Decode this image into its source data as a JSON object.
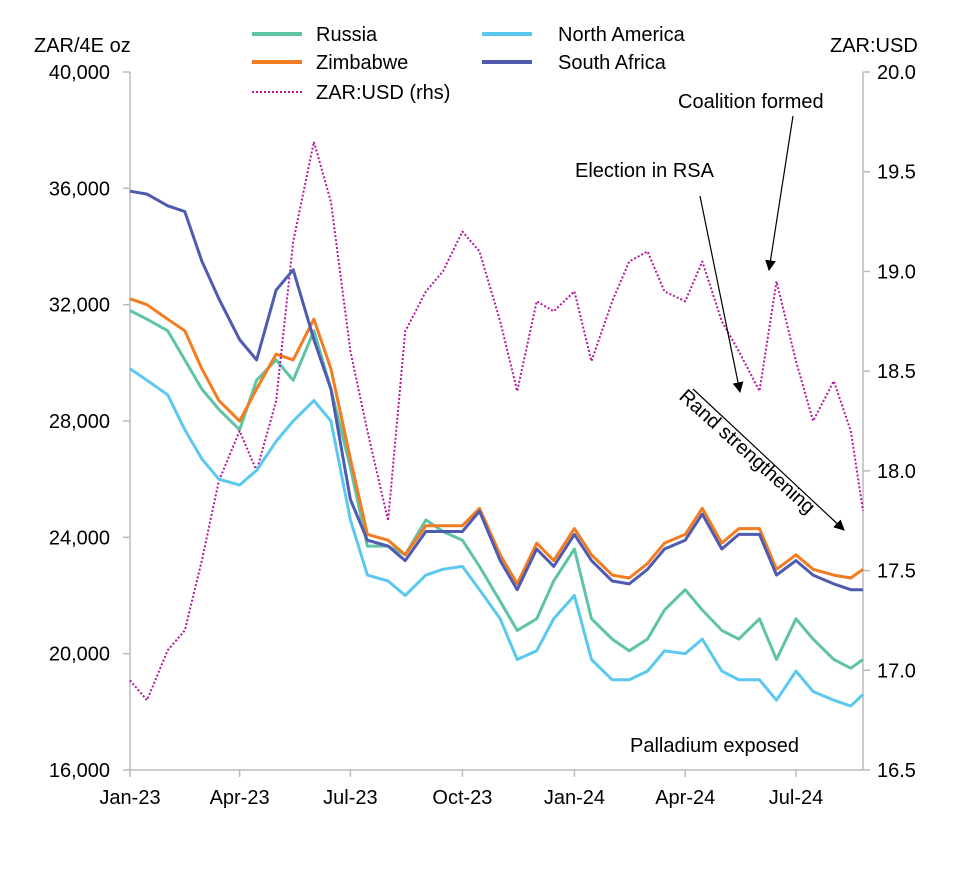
{
  "chart_data": {
    "type": "line",
    "ylabel_left": "ZAR/4E oz",
    "ylabel_right": "ZAR:USD",
    "ylim_left": [
      16000,
      40000
    ],
    "ylim_right": [
      16.5,
      20.0
    ],
    "xlim": [
      "2023-01-01",
      "2024-08-25"
    ],
    "grid": false,
    "legend_position": "top-center",
    "x_ticks": [
      {
        "date": "2023-01-01",
        "label": "Jan-23"
      },
      {
        "date": "2023-04-01",
        "label": "Apr-23"
      },
      {
        "date": "2023-07-01",
        "label": "Jul-23"
      },
      {
        "date": "2023-10-01",
        "label": "Oct-23"
      },
      {
        "date": "2024-01-01",
        "label": "Jan-24"
      },
      {
        "date": "2024-04-01",
        "label": "Apr-24"
      },
      {
        "date": "2024-07-01",
        "label": "Jul-24"
      }
    ],
    "y_ticks_left": [
      {
        "value": 16000,
        "label": "16,000"
      },
      {
        "value": 20000,
        "label": "20,000"
      },
      {
        "value": 24000,
        "label": "24,000"
      },
      {
        "value": 28000,
        "label": "28,000"
      },
      {
        "value": 32000,
        "label": "32,000"
      },
      {
        "value": 36000,
        "label": "36,000"
      },
      {
        "value": 40000,
        "label": "40,000"
      }
    ],
    "y_ticks_right": [
      {
        "value": 16.5,
        "label": "16.5"
      },
      {
        "value": 17.0,
        "label": "17.0"
      },
      {
        "value": 17.5,
        "label": "17.5"
      },
      {
        "value": 18.0,
        "label": "18.0"
      },
      {
        "value": 18.5,
        "label": "18.5"
      },
      {
        "value": 19.0,
        "label": "19.0"
      },
      {
        "value": 19.5,
        "label": "19.5"
      },
      {
        "value": 20.0,
        "label": "20.0"
      }
    ],
    "x": [
      "2023-01-01",
      "2023-01-15",
      "2023-02-01",
      "2023-02-15",
      "2023-03-01",
      "2023-03-15",
      "2023-04-01",
      "2023-04-15",
      "2023-05-01",
      "2023-05-15",
      "2023-06-01",
      "2023-06-15",
      "2023-07-01",
      "2023-07-15",
      "2023-08-01",
      "2023-08-15",
      "2023-09-01",
      "2023-09-15",
      "2023-10-01",
      "2023-10-15",
      "2023-11-01",
      "2023-11-15",
      "2023-12-01",
      "2023-12-15",
      "2024-01-01",
      "2024-01-15",
      "2024-02-01",
      "2024-02-15",
      "2024-03-01",
      "2024-03-15",
      "2024-04-01",
      "2024-04-15",
      "2024-05-01",
      "2024-05-15",
      "2024-06-01",
      "2024-06-15",
      "2024-07-01",
      "2024-07-15",
      "2024-08-01",
      "2024-08-15",
      "2024-08-25"
    ],
    "series": [
      {
        "name": "Russia",
        "axis": "left",
        "color": "#5fc3a6",
        "style": "solid",
        "values": [
          31800,
          31500,
          31100,
          30100,
          29100,
          28400,
          27700,
          29400,
          30100,
          29400,
          31100,
          29100,
          26400,
          23700,
          23700,
          23400,
          24600,
          24200,
          23900,
          23000,
          21800,
          20800,
          21200,
          22500,
          23600,
          21200,
          20500,
          20100,
          20500,
          21500,
          22200,
          21500,
          20800,
          20500,
          21200,
          19800,
          21200,
          20500,
          19800,
          19500,
          19800
        ]
      },
      {
        "name": "Zimbabwe",
        "axis": "left",
        "color": "#f47c20",
        "style": "solid",
        "values": [
          32200,
          32000,
          31500,
          31100,
          29800,
          28700,
          28000,
          29100,
          30300,
          30100,
          31500,
          29800,
          26700,
          24100,
          23900,
          23400,
          24400,
          24400,
          24400,
          25000,
          23400,
          22400,
          23800,
          23200,
          24300,
          23400,
          22700,
          22600,
          23100,
          23800,
          24100,
          25000,
          23800,
          24300,
          24300,
          22900,
          23400,
          22900,
          22700,
          22600,
          22900
        ]
      },
      {
        "name": "ZAR:USD (rhs)",
        "axis": "right",
        "color": "#b5179e",
        "style": "dotted",
        "values": [
          16.95,
          16.85,
          17.1,
          17.2,
          17.55,
          17.95,
          18.2,
          18.0,
          18.35,
          19.15,
          19.65,
          19.35,
          18.6,
          18.2,
          17.75,
          18.7,
          18.9,
          19.0,
          19.2,
          19.1,
          18.75,
          18.4,
          18.85,
          18.8,
          18.9,
          18.55,
          18.85,
          19.05,
          19.1,
          18.9,
          18.85,
          19.05,
          18.75,
          18.6,
          18.4,
          18.95,
          18.55,
          18.25,
          18.45,
          18.2,
          17.8
        ]
      },
      {
        "name": "North America",
        "axis": "left",
        "color": "#5bc8ef",
        "style": "solid",
        "values": [
          29800,
          29400,
          28900,
          27700,
          26700,
          26000,
          25800,
          26300,
          27300,
          28000,
          28700,
          28000,
          24600,
          22700,
          22500,
          22000,
          22700,
          22900,
          23000,
          22200,
          21200,
          19800,
          20100,
          21200,
          22000,
          19800,
          19100,
          19100,
          19400,
          20100,
          20000,
          20500,
          19400,
          19100,
          19100,
          18400,
          19400,
          18700,
          18400,
          18200,
          18600
        ]
      },
      {
        "name": "South Africa",
        "axis": "left",
        "color": "#4e5bb0",
        "style": "solid",
        "values": [
          35900,
          35800,
          35400,
          35200,
          33500,
          32200,
          30800,
          30100,
          32500,
          33200,
          30800,
          29100,
          25300,
          23900,
          23700,
          23200,
          24200,
          24200,
          24200,
          24900,
          23200,
          22200,
          23600,
          23000,
          24100,
          23200,
          22500,
          22400,
          22900,
          23600,
          23900,
          24800,
          23600,
          24100,
          24100,
          22700,
          23200,
          22700,
          22400,
          22200,
          22200
        ]
      }
    ],
    "annotations": [
      {
        "text": "Coalition formed"
      },
      {
        "text": "Election in RSA"
      },
      {
        "text": "Rand strengthening"
      },
      {
        "text": "Palladium exposed"
      }
    ]
  }
}
